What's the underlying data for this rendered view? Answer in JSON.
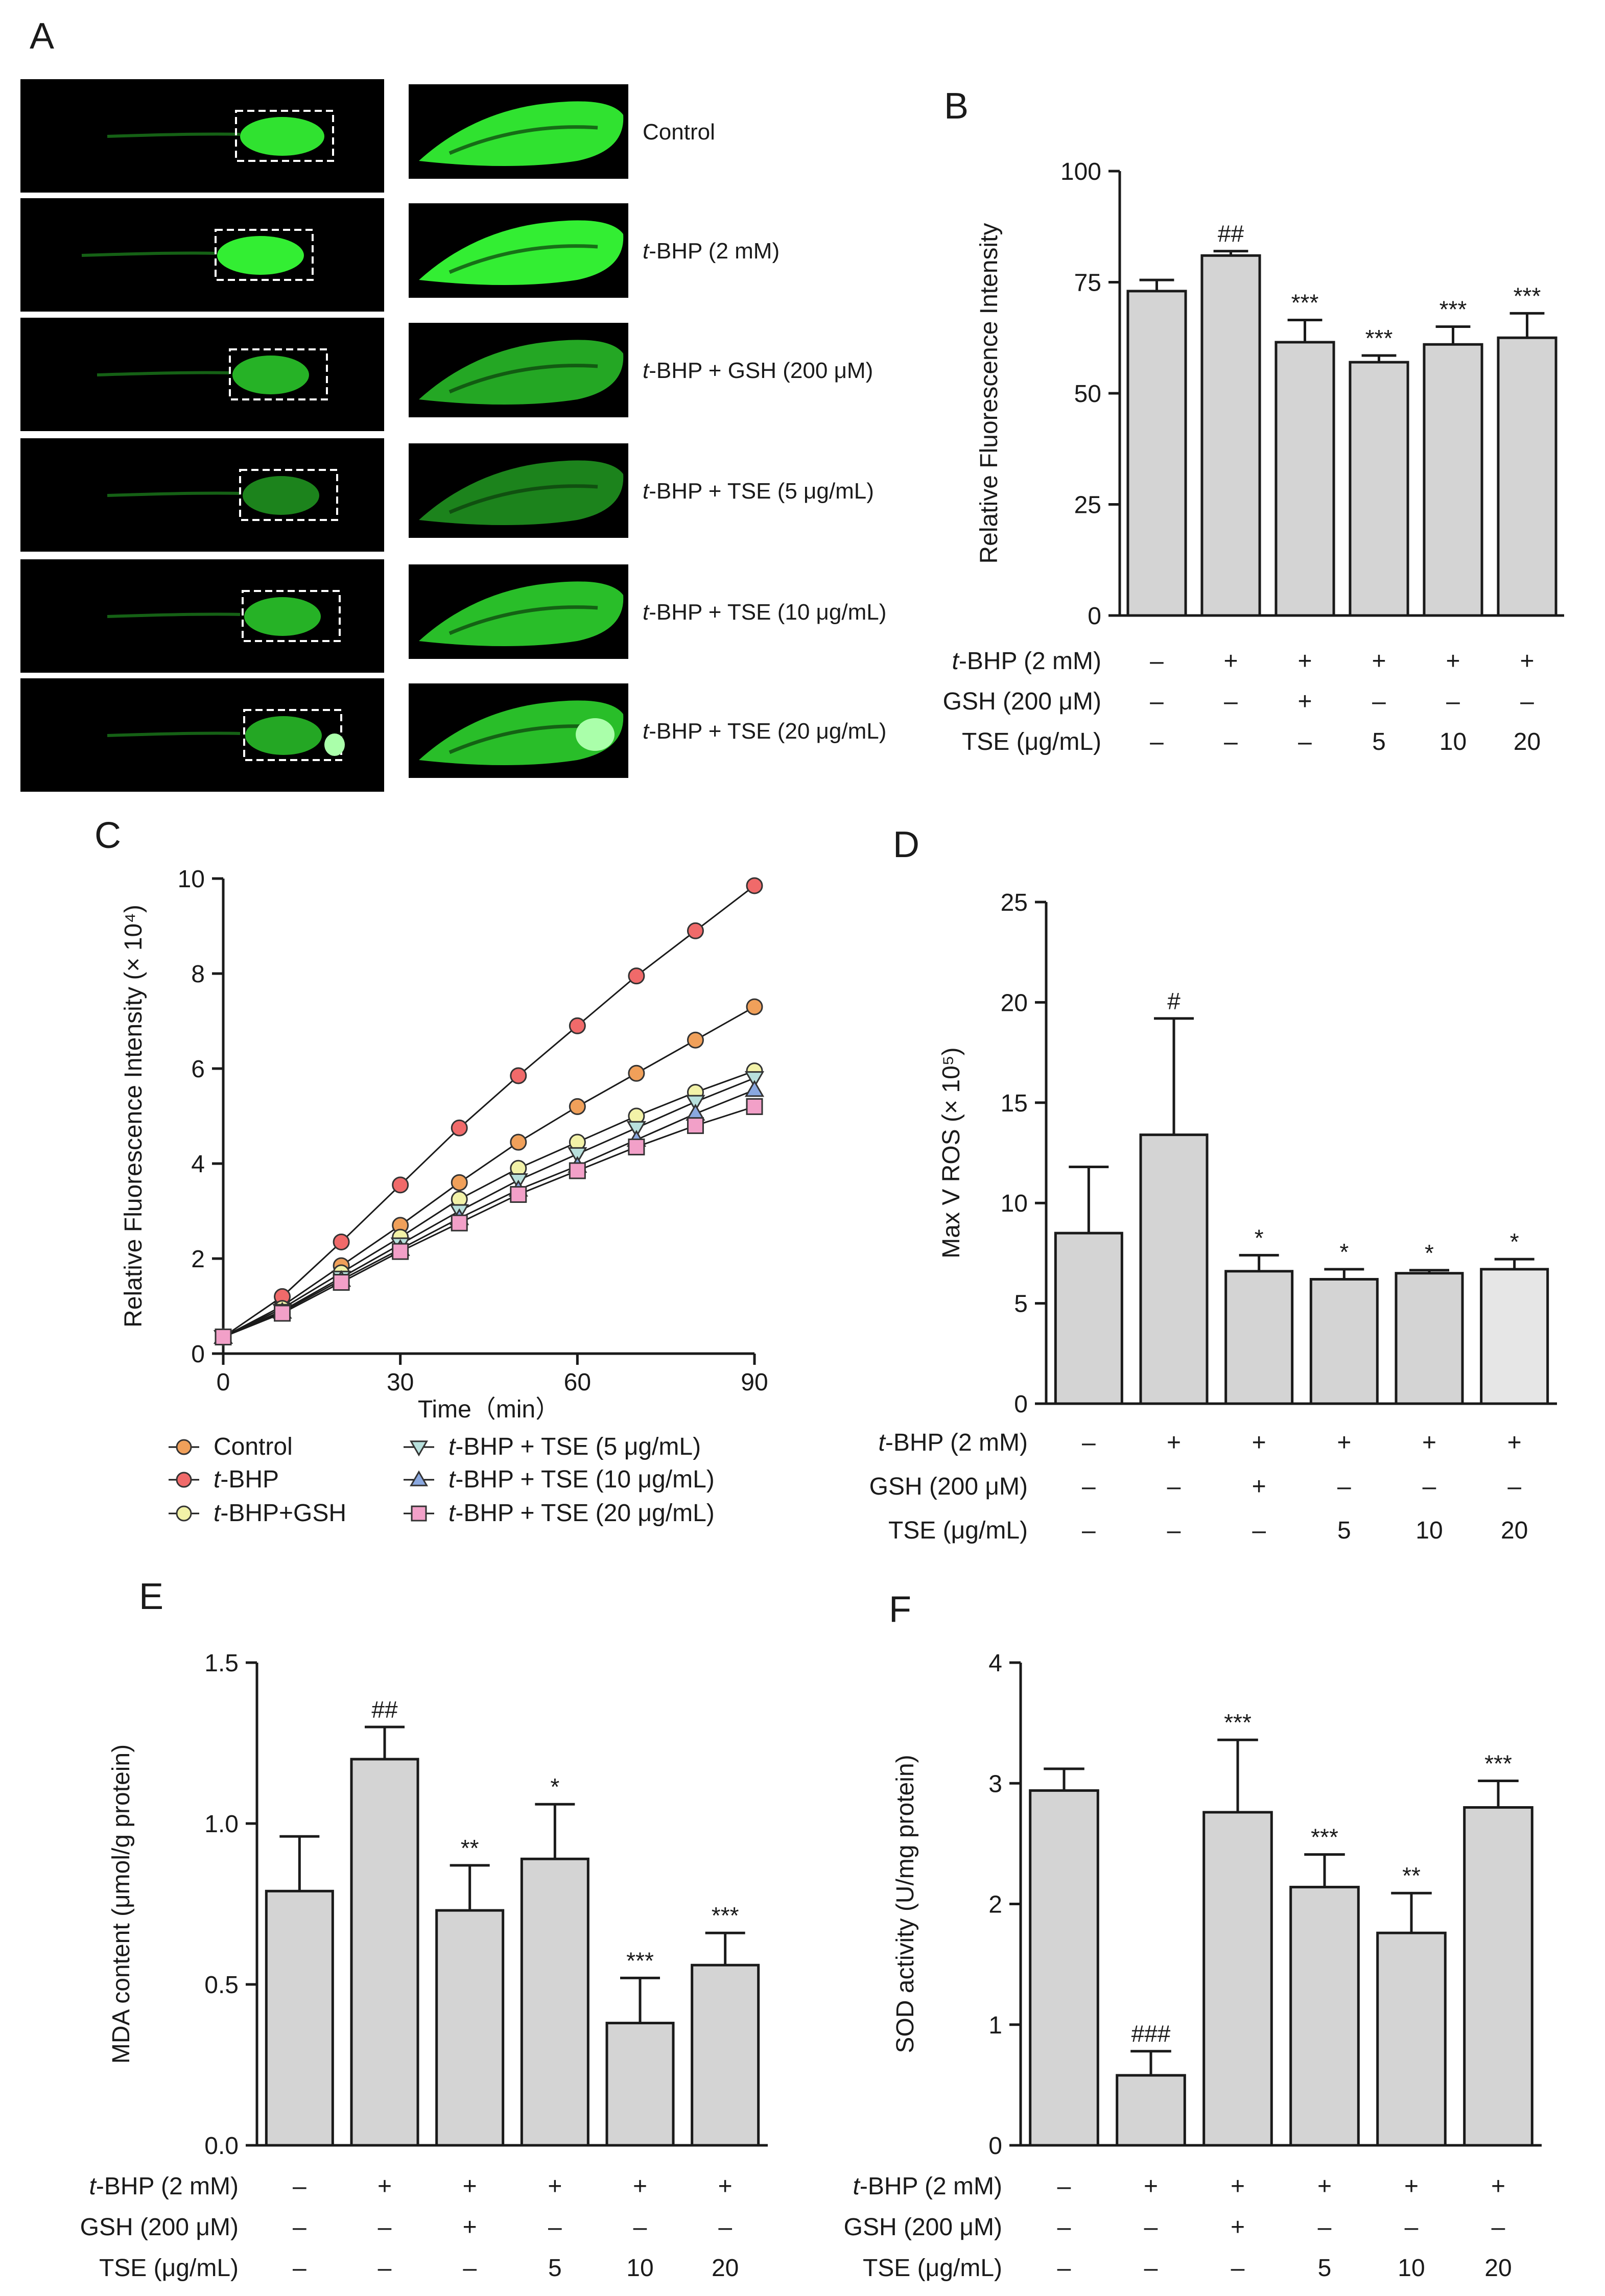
{
  "panel_labels": [
    "A",
    "B",
    "C",
    "D",
    "E",
    "F"
  ],
  "panel_a": {
    "conditions": [
      {
        "prefix": "",
        "label": "Control"
      },
      {
        "prefix": "t",
        "label": "-BHP (2 mM)"
      },
      {
        "prefix": "t",
        "label": "-BHP + GSH (200 μM)"
      },
      {
        "prefix": "t",
        "label": "-BHP + TSE (5 μg/mL)"
      },
      {
        "prefix": "t",
        "label": "-BHP + TSE (10 μg/mL)"
      },
      {
        "prefix": "t",
        "label": "-BHP + TSE (20 μg/mL)"
      }
    ],
    "fluorescence_color": "#33ee33"
  },
  "treatment_table": {
    "rows": [
      {
        "prefix": "t",
        "label": "-BHP (2 mM)",
        "values": [
          "–",
          "+",
          "+",
          "+",
          "+",
          "+"
        ]
      },
      {
        "prefix": "",
        "label": "GSH (200 μM)",
        "values": [
          "–",
          "–",
          "+",
          "–",
          "–",
          "–"
        ]
      },
      {
        "prefix": "",
        "label": "TSE (μg/mL)",
        "values": [
          "–",
          "–",
          "–",
          "5",
          "10",
          "20"
        ]
      }
    ]
  },
  "chart_data": [
    {
      "panel": "B",
      "type": "bar",
      "ylabel": "Relative Fluorescence Intensity",
      "ylim": [
        0,
        100
      ],
      "yticks": [
        0,
        25,
        50,
        75,
        100
      ],
      "values": [
        73,
        81,
        61.5,
        57,
        61,
        62.5
      ],
      "errors": [
        2.5,
        1,
        5,
        1.5,
        4,
        5.5
      ],
      "annotations": [
        "",
        "##",
        "***",
        "***",
        "***",
        "***"
      ],
      "bar_colors": [
        "#d4d4d4",
        "#d4d4d4",
        "#d4d4d4",
        "#d4d4d4",
        "#d4d4d4",
        "#d4d4d4"
      ]
    },
    {
      "panel": "C",
      "type": "line",
      "xlabel": "Time（min）",
      "ylabel": "Relative Fluorescence Intensity (× 10⁴)",
      "xlim": [
        0,
        90
      ],
      "ylim": [
        0,
        10
      ],
      "xticks": [
        0,
        30,
        60,
        90
      ],
      "yticks": [
        0,
        2,
        4,
        6,
        8,
        10
      ],
      "x": [
        0,
        10,
        20,
        30,
        40,
        50,
        60,
        70,
        80,
        90
      ],
      "series": [
        {
          "prefix": "",
          "name": "Control",
          "marker": "circle",
          "color": "#f0a05a",
          "values": [
            0.35,
            1.0,
            1.85,
            2.7,
            3.6,
            4.45,
            5.2,
            5.9,
            6.6,
            7.3
          ]
        },
        {
          "prefix": "t",
          "name": "-BHP",
          "marker": "circle",
          "color": "#f06a6a",
          "values": [
            0.35,
            1.2,
            2.35,
            3.55,
            4.75,
            5.85,
            6.9,
            7.95,
            8.9,
            9.85
          ]
        },
        {
          "prefix": "t",
          "name": "-BHP+GSH",
          "marker": "circle",
          "color": "#f2f2a8",
          "values": [
            0.35,
            0.95,
            1.7,
            2.45,
            3.25,
            3.9,
            4.45,
            5.0,
            5.5,
            5.95
          ]
        },
        {
          "prefix": "t",
          "name": "-BHP + TSE (5 μg/mL)",
          "marker": "triangle-down",
          "color": "#b8e0dc",
          "values": [
            0.35,
            0.9,
            1.6,
            2.3,
            3.0,
            3.65,
            4.2,
            4.75,
            5.3,
            5.8
          ]
        },
        {
          "prefix": "t",
          "name": "-BHP + TSE (10 μg/mL)",
          "marker": "triangle-up",
          "color": "#8aa8e0",
          "values": [
            0.35,
            0.88,
            1.55,
            2.2,
            2.85,
            3.45,
            3.95,
            4.5,
            5.05,
            5.55
          ]
        },
        {
          "prefix": "t",
          "name": "-BHP + TSE (20 μg/mL)",
          "marker": "square",
          "color": "#f2a0c8",
          "values": [
            0.35,
            0.85,
            1.5,
            2.15,
            2.75,
            3.35,
            3.85,
            4.35,
            4.8,
            5.2
          ]
        }
      ]
    },
    {
      "panel": "D",
      "type": "bar",
      "ylabel": "Max V ROS (× 10⁵)",
      "ylim": [
        0,
        25
      ],
      "yticks": [
        0,
        5,
        10,
        15,
        20,
        25
      ],
      "values": [
        8.5,
        13.4,
        6.6,
        6.2,
        6.5,
        6.7
      ],
      "errors": [
        3.3,
        5.8,
        0.8,
        0.5,
        0.15,
        0.5
      ],
      "annotations": [
        "",
        "#",
        "*",
        "*",
        "*",
        "*"
      ],
      "bar_colors": [
        "#d4d4d4",
        "#d4d4d4",
        "#d4d4d4",
        "#d4d4d4",
        "#d4d4d4",
        "#e6e6e6"
      ]
    },
    {
      "panel": "E",
      "type": "bar",
      "ylabel": "MDA content (μmol/g protein)",
      "ylim": [
        0,
        1.5
      ],
      "yticks": [
        "0.0",
        "0.5",
        "1.0",
        "1.5"
      ],
      "values": [
        0.79,
        1.2,
        0.73,
        0.89,
        0.38,
        0.56
      ],
      "errors": [
        0.17,
        0.1,
        0.14,
        0.17,
        0.14,
        0.1
      ],
      "annotations": [
        "",
        "##",
        "**",
        "*",
        "***",
        "***"
      ],
      "bar_colors": [
        "#d4d4d4",
        "#d4d4d4",
        "#d4d4d4",
        "#d4d4d4",
        "#d4d4d4",
        "#d4d4d4"
      ]
    },
    {
      "panel": "F",
      "type": "bar",
      "ylabel": "SOD activity (U/mg protein)",
      "ylim": [
        0,
        4
      ],
      "yticks": [
        0,
        1,
        2,
        3,
        4
      ],
      "values": [
        2.94,
        0.58,
        2.76,
        2.14,
        1.76,
        2.8
      ],
      "errors": [
        0.18,
        0.2,
        0.6,
        0.27,
        0.33,
        0.22
      ],
      "annotations": [
        "",
        "###",
        "***",
        "***",
        "**",
        "***"
      ],
      "bar_colors": [
        "#d4d4d4",
        "#d4d4d4",
        "#d4d4d4",
        "#d4d4d4",
        "#d4d4d4",
        "#d4d4d4"
      ]
    }
  ]
}
